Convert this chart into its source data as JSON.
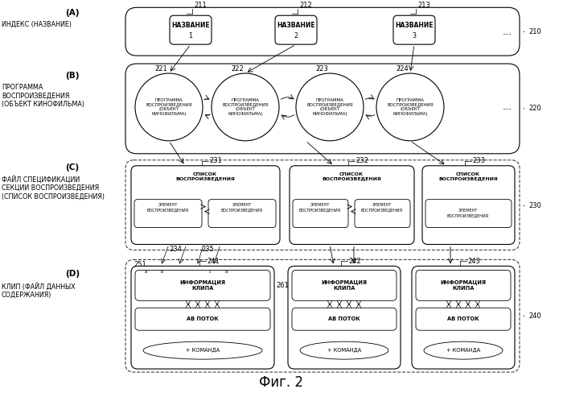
{
  "title": "Фиг. 2",
  "bg_color": "#ffffff",
  "label_A_letter": "(A)",
  "label_A_text": "ИНДЕКС (НАЗВАНИЕ)",
  "label_B_letter": "(B)",
  "label_B_text": "ПРОГРАММА\nВОСПРОИЗВЕДЕНИЯ\n(ОБЪЕКТ КИНОФИЛЬМА)",
  "label_C_letter": "(C)",
  "label_C_text": "ФАЙЛ СПЕЦИФИКАЦИИ\nСЕКЦИИ ВОСПРОИЗВЕДЕНИЯ\n(СПИСОК ВОСПРОИЗВЕДЕНИЯ)",
  "label_D_letter": "(D)",
  "label_D_text": "КЛИП (ФАЙЛ ДАННЫХ\nСОДЕРЖАНИЯ)",
  "num_210": "210",
  "num_211": "211",
  "num_212": "212",
  "num_213": "213",
  "num_220": "220",
  "num_221": "221",
  "num_222": "222",
  "num_223": "223",
  "num_224": "224",
  "num_230": "230",
  "num_231": "231",
  "num_232": "232",
  "num_233": "233",
  "num_234": "234",
  "num_235": "235",
  "num_240": "240",
  "num_241": "241",
  "num_242": "242",
  "num_243": "243",
  "num_251": "251",
  "num_261": "261",
  "title_box_text": "НАЗВАНИЕ",
  "circle_text": "ПРОГРАММА\nВОСПРОИЗВЕДЕНИЯ\n(ОБЪЕКТ\nКИНОФИЛЬМА)",
  "playlist_text": "СПИСОК\nВОСПРОИЗВЕДЕНИЯ",
  "element_text": "ЭЛЕМЕНТ\nВОСПРОИЗВЕДЕНИЯ",
  "clip_info_text": "ИНФОРМАЦИЯ\nКЛИПА",
  "av_text": "АВ ПОТОК",
  "cmd_text": "+ КОМАНДА",
  "dots": "..."
}
